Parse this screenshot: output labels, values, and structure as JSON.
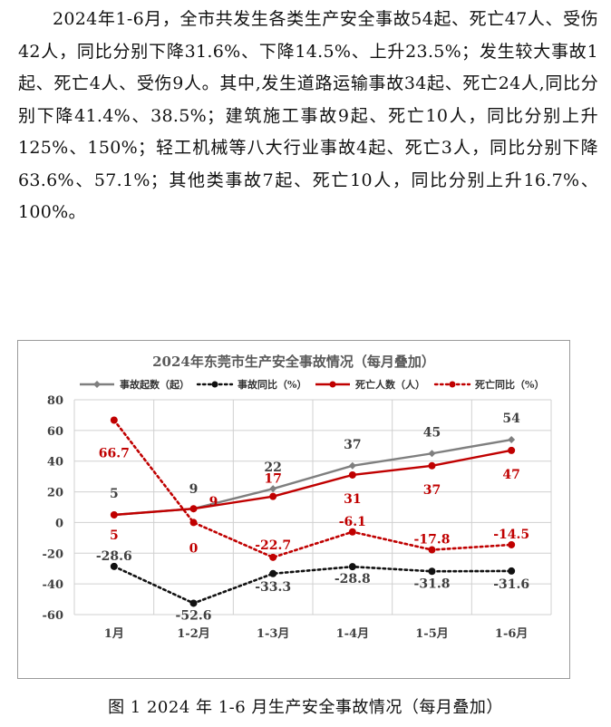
{
  "paragraph": "2024年1-6月，全市共发生各类生产安全事故54起、死亡47人、受伤42人，同比分别下降31.6%、下降14.5%、上升23.5%；发生较大事故1起、死亡4人、受伤9人。其中,发生道路运输事故34起、死亡24人,同比分别下降41.4%、38.5%；建筑施工事故9起、死亡10人，同比分别上升125%、150%；轻工机械等八大行业事故4起、死亡3人，同比分别下降63.6%、57.1%；其他类事故7起、死亡10人，同比分别上升16.7%、100%。",
  "caption": "图 1 2024 年 1-6 月生产安全事故情况（每月叠加）",
  "chart_data": {
    "type": "line",
    "title": "2024年东莞市生产安全事故情况（每月叠加）",
    "categories": [
      "1月",
      "1-2月",
      "1-3月",
      "1-4月",
      "1-5月",
      "1-6月"
    ],
    "ylim": [
      -60,
      80
    ],
    "yticks": [
      80,
      60,
      40,
      20,
      0,
      -20,
      -40,
      -60
    ],
    "grid": true,
    "legend_position": "top",
    "series": [
      {
        "name": "事故起数（起）",
        "values": [
          5,
          9,
          22,
          37,
          45,
          54
        ],
        "color": "#7f7f7f",
        "style": "solid",
        "labels": [
          "5",
          "9",
          "22",
          "37",
          "45",
          "54"
        ],
        "label_color": "#404040"
      },
      {
        "name": "事故同比（%）",
        "values": [
          -28.6,
          -52.6,
          -33.3,
          -28.8,
          -31.8,
          -31.6
        ],
        "color": "#111111",
        "style": "dotted",
        "labels": [
          "-28.6",
          "-52.6",
          "-33.3",
          "-28.8",
          "-31.8",
          "-31.6"
        ],
        "label_color": "#404040"
      },
      {
        "name": "死亡人数（人）",
        "values": [
          5,
          9,
          17,
          31,
          37,
          47
        ],
        "color": "#c00000",
        "style": "solid",
        "labels": [
          "5",
          "9",
          "17",
          "31",
          "37",
          "47"
        ],
        "label_color": "#c00000"
      },
      {
        "name": "死亡同比（%）",
        "values": [
          66.7,
          0,
          -22.7,
          -6.1,
          -17.8,
          -14.5
        ],
        "color": "#c00000",
        "style": "dotted",
        "labels": [
          "66.7",
          "0",
          "-22.7",
          "-6.1",
          "-17.8",
          "-14.5"
        ],
        "label_color": "#c00000"
      }
    ]
  }
}
